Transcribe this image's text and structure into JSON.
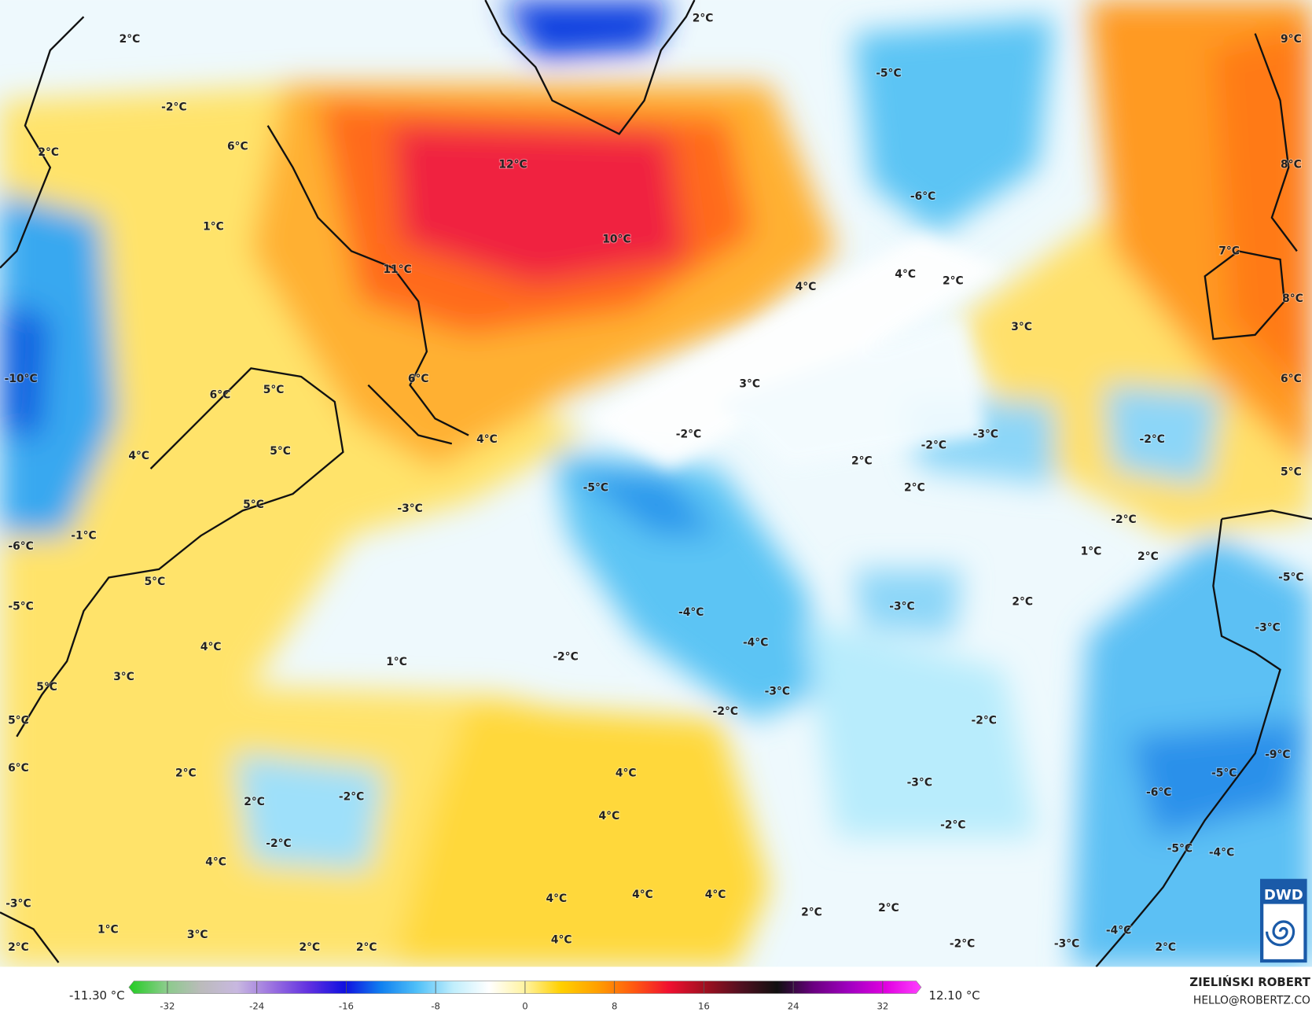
{
  "map": {
    "labels": [
      "2°C",
      "2°C",
      "9°C",
      "-5°C",
      "-2°C",
      "12°C",
      "2°C",
      "6°C",
      "8°C",
      "-6°C",
      "1°C",
      "10°C",
      "7°C",
      "11°C",
      "4°C",
      "2°C",
      "4°C",
      "8°C",
      "3°C",
      "-10°C",
      "6°C",
      "6°C",
      "3°C",
      "6°C",
      "5°C",
      "-3°C",
      "-2°C",
      "-2°C",
      "4°C",
      "-2°C",
      "5°C",
      "4°C",
      "2°C",
      "5°C",
      "-5°C",
      "2°C",
      "5°C",
      "-3°C",
      "-2°C",
      "-1°C",
      "-6°C",
      "1°C",
      "2°C",
      "5°C",
      "-5°C",
      "2°C",
      "-3°C",
      "-5°C",
      "-4°C",
      "-3°C",
      "-4°C",
      "4°C",
      "-2°C",
      "1°C",
      "3°C",
      "5°C",
      "-3°C",
      "-2°C",
      "5°C",
      "-2°C",
      "6°C",
      "-9°C",
      "2°C",
      "4°C",
      "-5°C",
      "-3°C",
      "-6°C",
      "-2°C",
      "2°C",
      "4°C",
      "-2°C",
      "-2°C",
      "-5°C",
      "-4°C",
      "4°C",
      "4°C",
      "4°C",
      "4°C",
      "-3°C",
      "2°C",
      "2°C",
      "1°C",
      "-4°C",
      "3°C",
      "4°C",
      "2°C",
      "2°C",
      "-2°C",
      "-3°C",
      "2°C",
      "2°C"
    ]
  },
  "colorbar": {
    "min_label": "-11.30 °C",
    "max_label": "12.10 °C",
    "lim": [
      -35,
      35
    ],
    "ticks": [
      -32,
      -24,
      -16,
      -8,
      0,
      8,
      16,
      24,
      32
    ],
    "colors": [
      "#22cc22",
      "#88cc88",
      "#bbbbbb",
      "#c8b8e0",
      "#9a70e0",
      "#6030e0",
      "#1010e0",
      "#1080f0",
      "#50c0f8",
      "#c0eefc",
      "#ffffff",
      "#fff3a0",
      "#ffd000",
      "#ffa000",
      "#ff5a10",
      "#f01030",
      "#a01020",
      "#501020",
      "#101010",
      "#6a0080",
      "#a000c0",
      "#e000e0",
      "#ff40ff"
    ]
  },
  "credit": {
    "name": "ZIELIŃSKI ROBERT",
    "email": "HELLO@ROBERTZ.CO",
    "logo": "DWD"
  }
}
